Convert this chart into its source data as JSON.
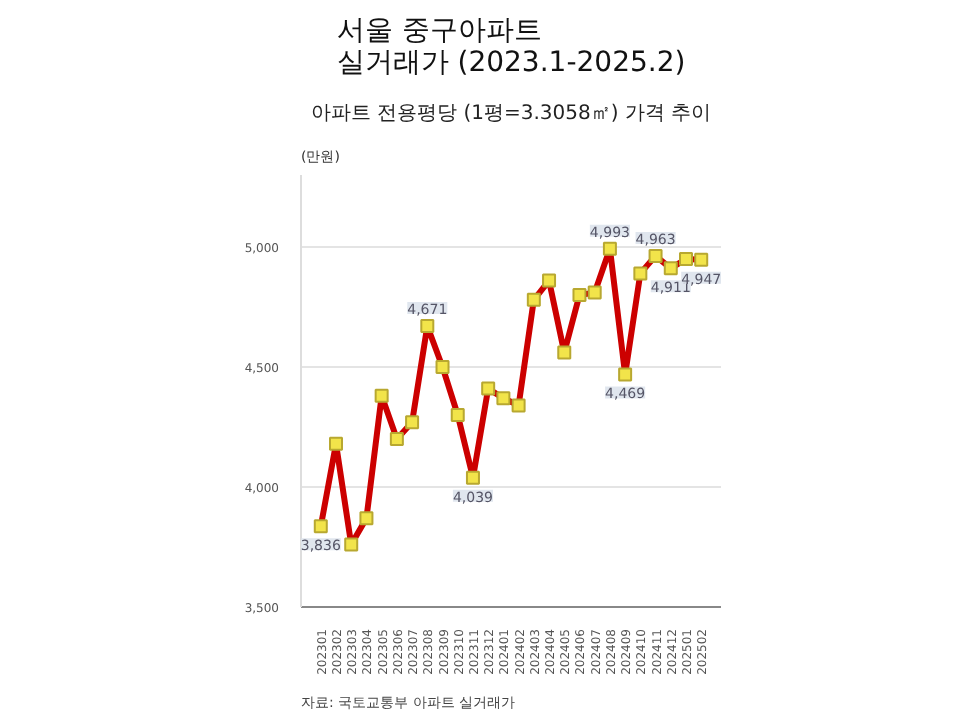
{
  "chart_data": {
    "type": "line",
    "title": "서울 중구아파트\n실거래가 (2023.1-2025.2)",
    "subtitle": "아파트 전용평당 (1평=3.3058㎡) 가격 추이",
    "ylabel": "(만원)",
    "categories": [
      "202301",
      "202302",
      "202303",
      "202304",
      "202305",
      "202306",
      "202307",
      "202308",
      "202309",
      "202310",
      "202311",
      "202312",
      "202401",
      "202402",
      "202403",
      "202404",
      "202405",
      "202406",
      "202407",
      "202408",
      "202409",
      "202410",
      "202411",
      "202412",
      "202501",
      "202502"
    ],
    "series": [
      {
        "color": "#cc0000",
        "values": [
          3836,
          4180,
          3760,
          3870,
          4380,
          4200,
          4270,
          4671,
          4500,
          4300,
          4039,
          4410,
          4370,
          4340,
          4780,
          4860,
          4560,
          4800,
          4810,
          4993,
          4469,
          4890,
          4963,
          4911,
          4950,
          4947
        ],
        "value_labels": [
          "3,836",
          null,
          null,
          null,
          null,
          null,
          null,
          "4,671",
          null,
          null,
          "4,039",
          null,
          null,
          null,
          null,
          null,
          null,
          null,
          null,
          "4,993",
          "4,469",
          null,
          "4,963",
          "4,911",
          null,
          "4,947"
        ]
      }
    ],
    "ylim": [
      3500,
      5300
    ],
    "yticks": [
      {
        "value": 3500,
        "label": "3,500"
      },
      {
        "value": 4000,
        "label": "4,000"
      },
      {
        "value": 4500,
        "label": "4,500"
      },
      {
        "value": 5000,
        "label": "5,000"
      }
    ],
    "grid": "y",
    "marker": "square",
    "line_style": "solid",
    "annotations": [
      "자료: 국토교통부 아파트 실거래가"
    ]
  }
}
